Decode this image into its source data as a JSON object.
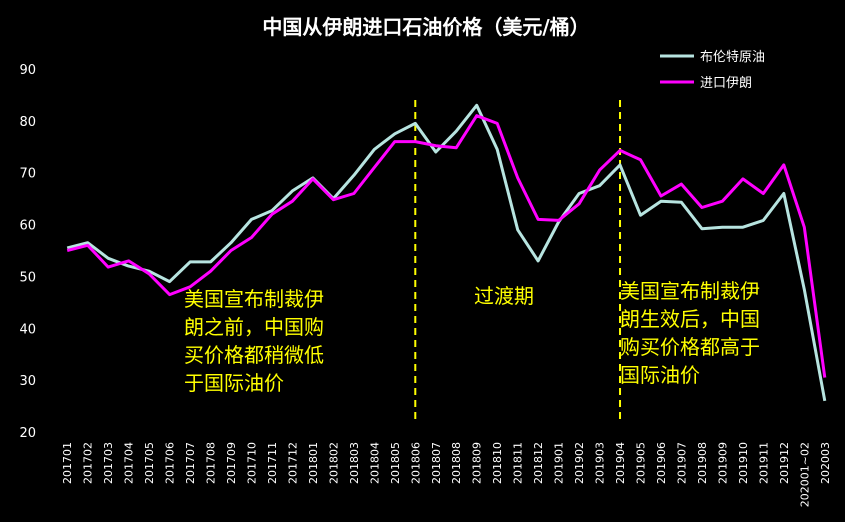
{
  "chart_data": {
    "type": "line",
    "title": "中国从伊朗进口石油价格（美元/桶）",
    "ylim": [
      20,
      90
    ],
    "yticks": [
      20,
      30,
      40,
      50,
      60,
      70,
      80,
      90
    ],
    "categories": [
      "201701",
      "201702",
      "201703",
      "201704",
      "201705",
      "201706",
      "201707",
      "201708",
      "201709",
      "201710",
      "201711",
      "201712",
      "201801",
      "201802",
      "201803",
      "201804",
      "201805",
      "201806",
      "201807",
      "201808",
      "201809",
      "201810",
      "201811",
      "201812",
      "201901",
      "201902",
      "201903",
      "201904",
      "201905",
      "201906",
      "201907",
      "201908",
      "201909",
      "201910",
      "201911",
      "201912",
      "202001~02",
      "202003"
    ],
    "series": [
      {
        "name": "布伦特原油",
        "color": "#b7e4e0",
        "values": [
          55.5,
          56.5,
          53.5,
          52,
          51,
          49,
          52.8,
          52.8,
          56.5,
          61,
          62.7,
          66.5,
          69,
          65,
          69.5,
          74.5,
          77.5,
          79.5,
          74,
          78,
          83,
          74.5,
          59,
          53,
          60.5,
          66,
          67.5,
          71.5,
          61.8,
          64.5,
          64.3,
          59.2,
          59.5,
          59.5,
          60.8,
          66,
          47.5,
          26
        ]
      },
      {
        "name": "进口伊朗",
        "color": "#ff00ff",
        "values": [
          55,
          56,
          51.8,
          53,
          50.5,
          46.5,
          48,
          51,
          55,
          57.5,
          62,
          64.5,
          68.8,
          64.8,
          66,
          71,
          76,
          76,
          75.2,
          74.8,
          81,
          79.5,
          69,
          61,
          60.8,
          64,
          70.5,
          74.3,
          72.5,
          65.5,
          67.8,
          63.3,
          64.5,
          68.8,
          66,
          71.5,
          59.5,
          30.5
        ]
      }
    ],
    "dividers": [
      {
        "category": "201806",
        "color": "#ffff00"
      },
      {
        "category": "201904",
        "color": "#ffff00"
      }
    ],
    "annotations": [
      {
        "id": "before",
        "lines": [
          "美国宣布制裁伊",
          "朗之前，中国购",
          "买价格都稍微低",
          "于国际油价"
        ]
      },
      {
        "id": "transition",
        "lines": [
          "过渡期"
        ]
      },
      {
        "id": "after",
        "lines": [
          "美国宣布制裁伊",
          "朗生效后，中国",
          "购买价格都高于",
          "国际油价"
        ]
      }
    ],
    "legend_position": "top-right",
    "grid": false
  }
}
